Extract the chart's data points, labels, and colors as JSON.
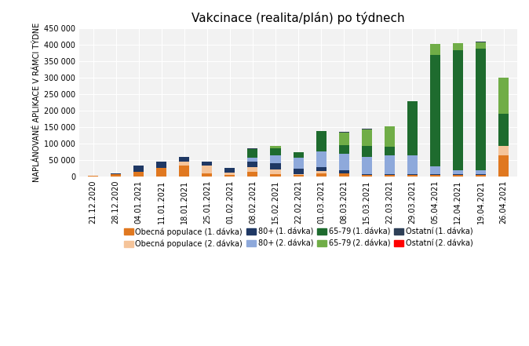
{
  "title": "Vakcinace (realita/plán) po týdnech",
  "ylabel": "NAPLÁNOVANÉ APLIKACE V RÁMCI TÝDNE",
  "categories": [
    "21.12.2020",
    "28.12.2020",
    "04.01.2021",
    "11.01.2021",
    "18.01.2021",
    "25.01.2021",
    "01.02.2021",
    "08.02.2021",
    "15.02.2021",
    "22.02.2021",
    "01.03.2021",
    "08.03.2021",
    "15.03.2021",
    "22.03.2021",
    "29.03.2021",
    "05.04.2021",
    "12.04.2021",
    "19.04.2021",
    "26.04.2021"
  ],
  "series": [
    {
      "name": "Obecná populace (1. dávka)",
      "color": "#E07820",
      "values": [
        1000,
        6000,
        15000,
        27000,
        33000,
        9000,
        4000,
        13000,
        8000,
        4000,
        9000,
        9000,
        4000,
        4000,
        4000,
        4000,
        4000,
        4000,
        65000
      ]
    },
    {
      "name": "Obecná populace (2. dávka)",
      "color": "#F5C49A",
      "values": [
        0,
        0,
        0,
        0,
        11000,
        25000,
        7000,
        15000,
        12000,
        4000,
        7000,
        0,
        0,
        0,
        0,
        0,
        0,
        0,
        28000
      ]
    },
    {
      "name": "80+ (1. dávka)",
      "color": "#1F3864",
      "values": [
        0,
        3000,
        18000,
        18000,
        16000,
        11000,
        16000,
        18000,
        20000,
        16000,
        13000,
        9000,
        4000,
        4000,
        4000,
        4000,
        4000,
        4000,
        0
      ]
    },
    {
      "name": "80+ (2. dávka)",
      "color": "#8EA9DB",
      "values": [
        0,
        0,
        0,
        0,
        0,
        0,
        0,
        11000,
        23000,
        32000,
        47000,
        50000,
        51000,
        55000,
        57000,
        22000,
        10000,
        10000,
        0
      ]
    },
    {
      "name": "65-79 (1. dávka)",
      "color": "#1E6B2E",
      "values": [
        0,
        0,
        0,
        0,
        0,
        0,
        0,
        27000,
        22000,
        18000,
        62000,
        28000,
        33000,
        27000,
        165000,
        340000,
        365000,
        370000,
        97000
      ]
    },
    {
      "name": "65-79 (2. dávka)",
      "color": "#70AD47",
      "values": [
        0,
        0,
        0,
        0,
        0,
        0,
        0,
        0,
        7000,
        0,
        0,
        38000,
        52000,
        62000,
        0,
        32000,
        22000,
        20000,
        110000
      ]
    },
    {
      "name": "Ostatní (1. dávka)",
      "color": "#2E4057",
      "values": [
        0,
        0,
        0,
        0,
        0,
        0,
        0,
        2000,
        0,
        0,
        0,
        1500,
        1500,
        1500,
        0,
        1500,
        1500,
        1500,
        0
      ]
    },
    {
      "name": "Ostatní (2. dávka)",
      "color": "#FF0000",
      "values": [
        0,
        0,
        0,
        0,
        0,
        0,
        0,
        0,
        0,
        0,
        0,
        0,
        0,
        0,
        0,
        0,
        0,
        0,
        0
      ]
    }
  ],
  "legend_names": [
    "Obecná populace (1. dávka)",
    "Obecná populace (2. dávka)",
    "80+ (1. dávka)",
    "80+ (2. dávka)",
    "65-79 (1. dávka)",
    "65-79 (2. dávka)",
    "Ostatní (1. dávka)",
    "Ostatní (2. dávka)"
  ],
  "ylim": [
    0,
    450000
  ],
  "yticks": [
    0,
    50000,
    100000,
    150000,
    200000,
    250000,
    300000,
    350000,
    400000,
    450000
  ],
  "ytick_labels": [
    "0",
    "50 000",
    "100 000",
    "150 000",
    "200 000",
    "250 000",
    "300 000",
    "350 000",
    "400 000",
    "450 000"
  ],
  "background_color": "#FFFFFF",
  "plot_bg_color": "#F2F2F2",
  "grid_color": "#FFFFFF",
  "title_fontsize": 11,
  "legend_fontsize": 7,
  "tick_fontsize": 7,
  "ylabel_fontsize": 7,
  "bar_width": 0.45
}
